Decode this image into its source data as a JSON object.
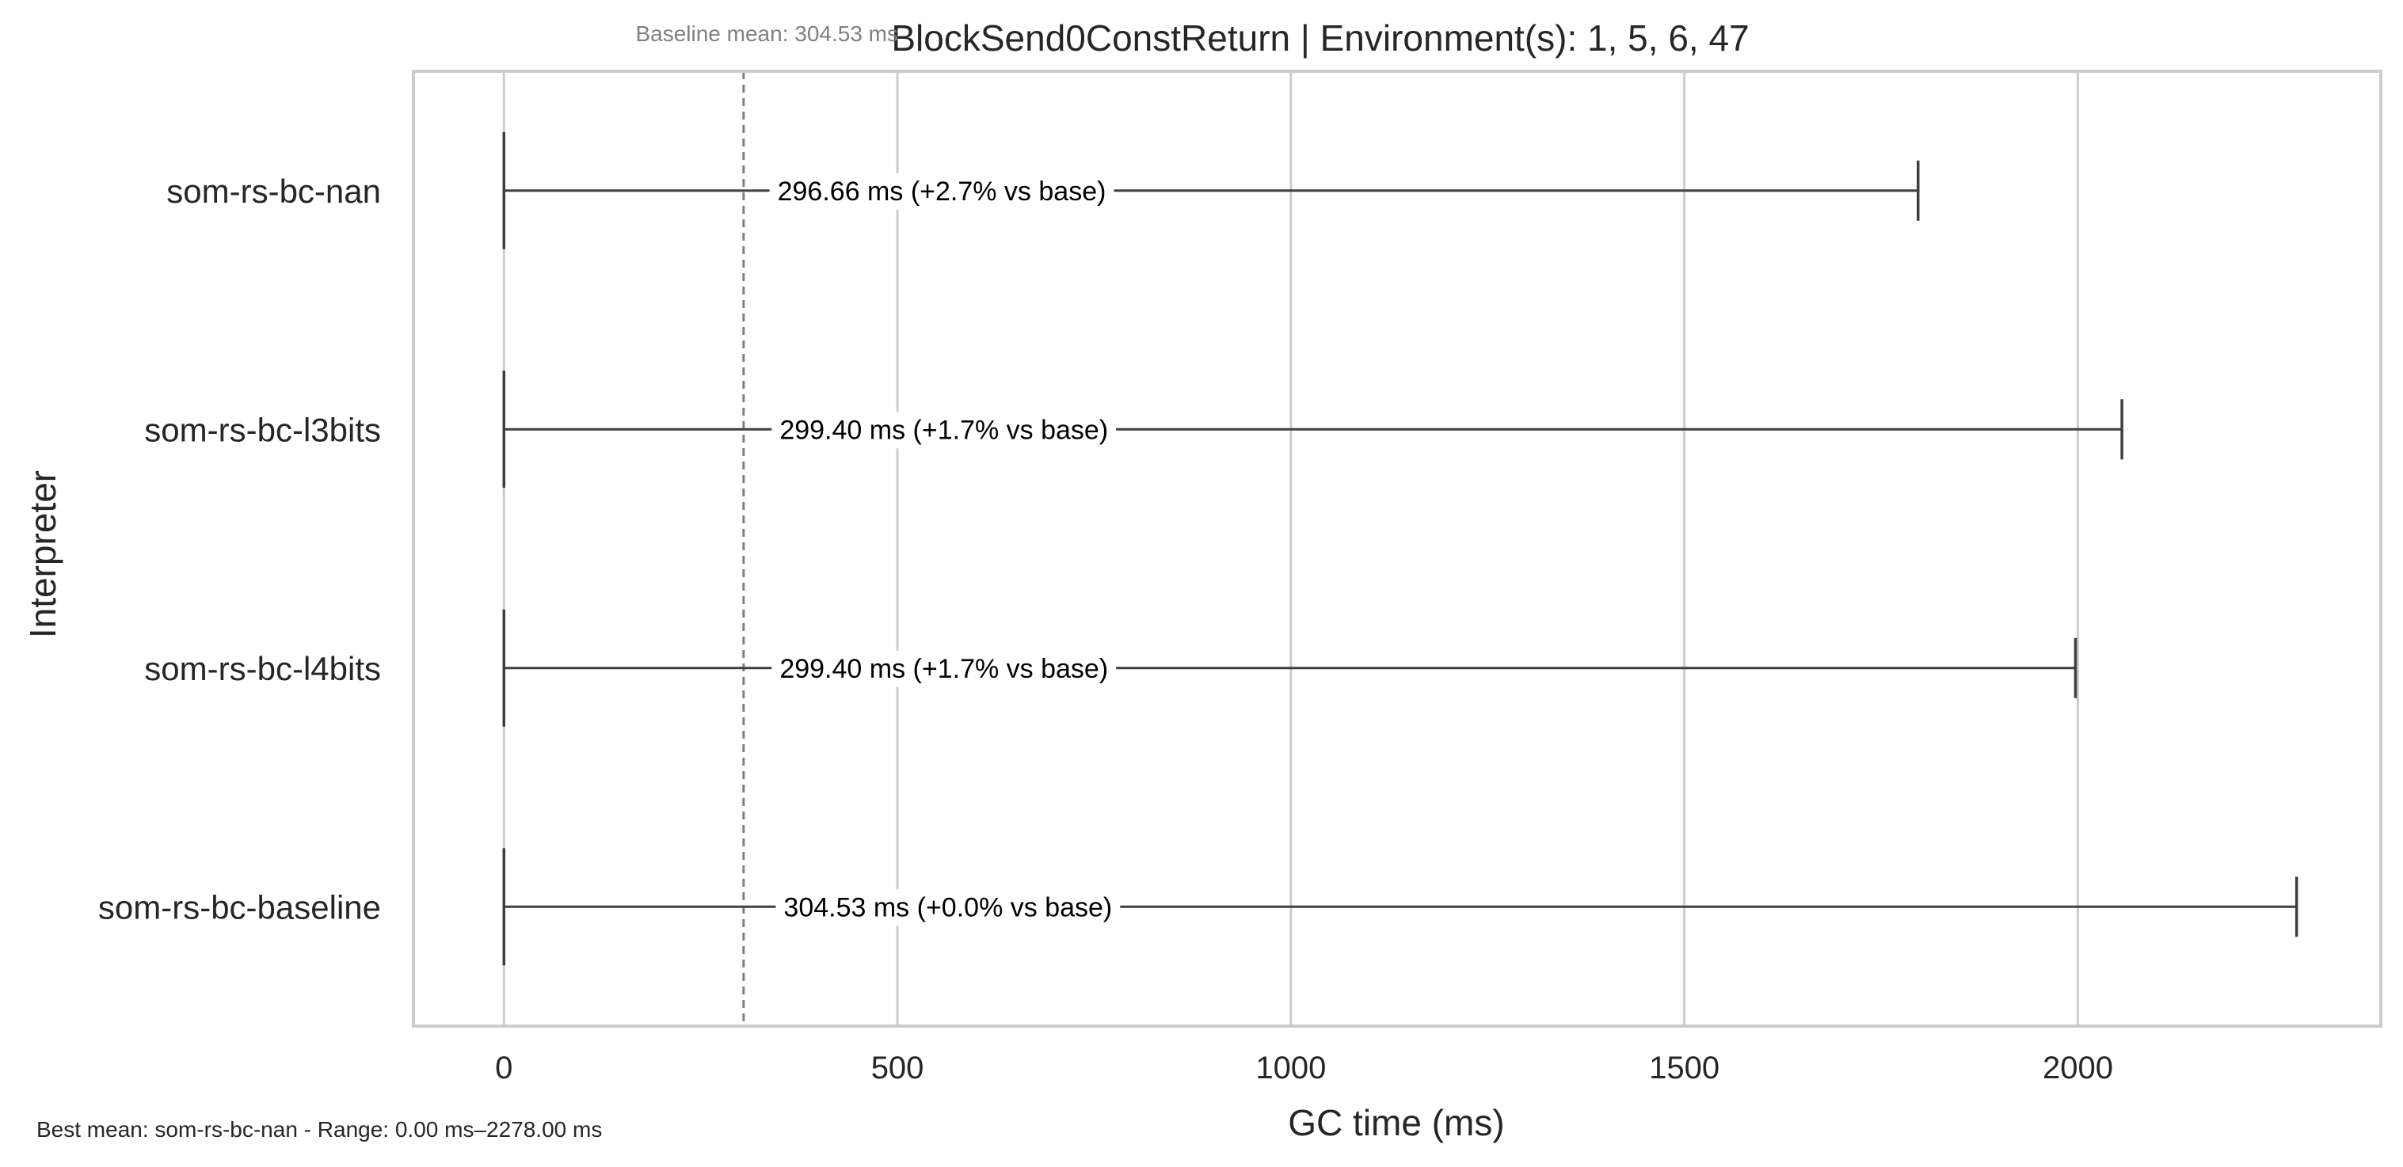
{
  "chart_data": {
    "type": "box",
    "title": "BlockSend0ConstReturn | Environment(s): 1, 5, 6, 47",
    "xlabel": "GC time (ms)",
    "ylabel": "Interpreter",
    "xlim": [
      -115,
      2385
    ],
    "xticks": [
      0,
      500,
      1000,
      1500,
      2000
    ],
    "grid": "vertical",
    "baseline": {
      "value": 304.53,
      "label": "Baseline mean: 304.53 ms"
    },
    "footer": "Best mean: som-rs-bc-nan - Range: 0.00 ms–2278.00 ms",
    "series": [
      {
        "category": "som-rs-bc-nan",
        "min": 0,
        "max": 1797,
        "mean": 296.66,
        "label": "296.66 ms  (+2.7% vs base)"
      },
      {
        "category": "som-rs-bc-l3bits",
        "min": 0,
        "max": 2056,
        "mean": 299.4,
        "label": "299.40 ms  (+1.7% vs base)"
      },
      {
        "category": "som-rs-bc-l4bits",
        "min": 0,
        "max": 1997,
        "mean": 299.4,
        "label": "299.40 ms  (+1.7% vs base)"
      },
      {
        "category": "som-rs-bc-baseline",
        "min": 0,
        "max": 2278,
        "mean": 304.53,
        "label": "304.53 ms  (+0.0% vs base)"
      }
    ],
    "colors": {
      "frame": "#cccccc",
      "grid": "#cccccc",
      "whisker": "#3f3f3f",
      "baseline": "#808080",
      "text": "#262626"
    }
  }
}
